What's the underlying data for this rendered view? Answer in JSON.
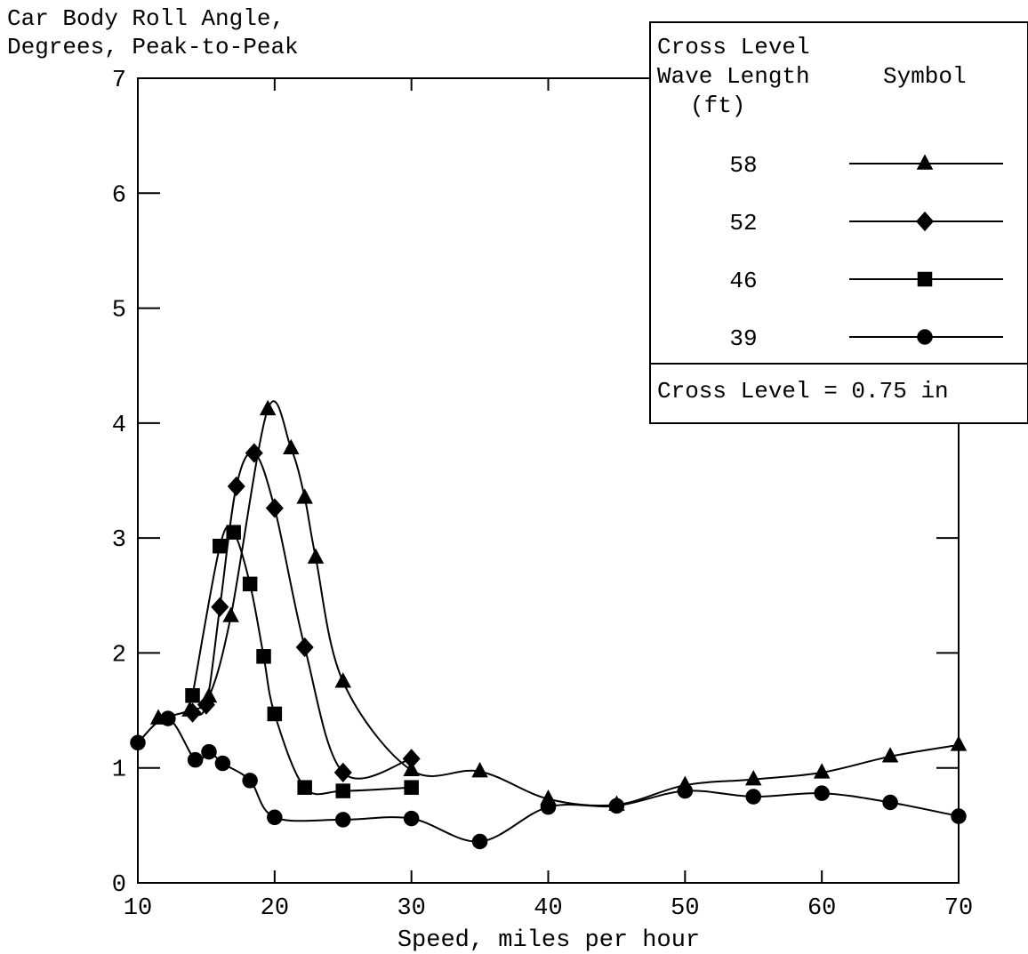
{
  "chart_data": {
    "type": "line",
    "ylabel_lines": [
      "Car Body Roll Angle,",
      "Degrees, Peak-to-Peak"
    ],
    "xlabel": "Speed, miles per hour",
    "xlim": [
      10,
      70
    ],
    "ylim": [
      0,
      7
    ],
    "x_ticks": [
      10,
      20,
      30,
      40,
      50,
      60,
      70
    ],
    "y_ticks": [
      0,
      1,
      2,
      3,
      4,
      5,
      6,
      7
    ],
    "grid": false,
    "legend": {
      "placement": "top-right",
      "header": [
        "Cross Level",
        "Wave Length",
        "(ft)"
      ],
      "symbol_header": "Symbol",
      "note": "Cross Level = 0.75 in"
    },
    "series": [
      {
        "name": "58",
        "marker": "triangle",
        "x": [
          11.5,
          13.8,
          15.2,
          16.8,
          19.5,
          21.2,
          22.2,
          23.0,
          25.0,
          30.0,
          35.0,
          40.0,
          45.0,
          50.0,
          55.0,
          60.0,
          65.0,
          70.0
        ],
        "y": [
          1.43,
          1.5,
          1.62,
          2.32,
          4.12,
          3.78,
          3.35,
          2.83,
          1.75,
          0.98,
          0.97,
          0.73,
          0.68,
          0.85,
          0.9,
          0.96,
          1.1,
          1.2
        ]
      },
      {
        "name": "52",
        "marker": "diamond",
        "x": [
          14.0,
          15.0,
          16.0,
          17.2,
          18.5,
          20.0,
          22.2,
          25.0,
          30.0
        ],
        "y": [
          1.48,
          1.55,
          2.4,
          3.45,
          3.74,
          3.26,
          2.05,
          0.96,
          1.08
        ]
      },
      {
        "name": "46",
        "marker": "square",
        "x": [
          14.0,
          16.0,
          17.0,
          18.2,
          19.2,
          20.0,
          22.2,
          25.0,
          30.0
        ],
        "y": [
          1.63,
          2.93,
          3.05,
          2.6,
          1.97,
          1.47,
          0.83,
          0.8,
          0.83
        ]
      },
      {
        "name": "39",
        "marker": "circle",
        "x": [
          10.0,
          12.2,
          14.2,
          15.2,
          16.2,
          18.2,
          20.0,
          25.0,
          30.0,
          35.0,
          40.0,
          45.0,
          50.0,
          55.0,
          60.0,
          65.0,
          70.0
        ],
        "y": [
          1.22,
          1.43,
          1.07,
          1.14,
          1.04,
          0.89,
          0.57,
          0.55,
          0.56,
          0.36,
          0.66,
          0.67,
          0.8,
          0.75,
          0.78,
          0.7,
          0.58
        ]
      }
    ]
  }
}
